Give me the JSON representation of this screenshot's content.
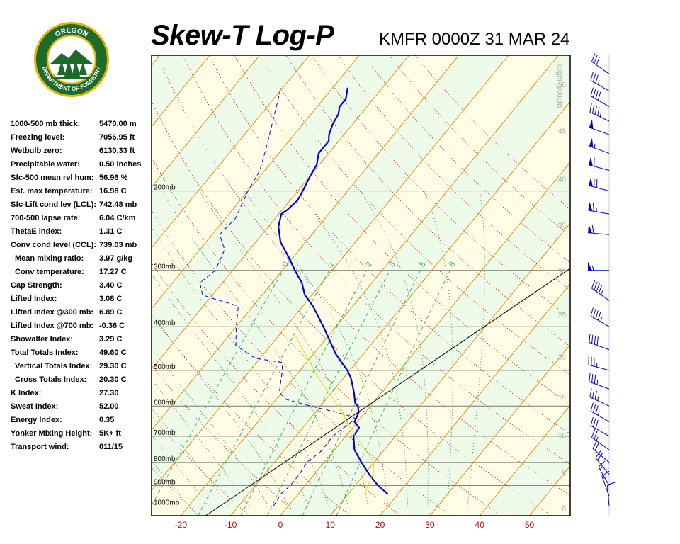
{
  "header": {
    "title": "Skew-T Log-P",
    "station": "KMFR 0000Z 31 MAR 24"
  },
  "logo": {
    "top_text": "OREGON",
    "bottom_text": "DEPARTMENT OF FORESTRY",
    "ring_color": "#1b6b2c",
    "accent_color": "#e0b400"
  },
  "indices": [
    {
      "label": "1000-500 mb thick:",
      "value": "5470.00 m"
    },
    {
      "label": "Freezing level:",
      "value": "7056.95 ft"
    },
    {
      "label": "Wetbulb zero:",
      "value": "6130.33 ft"
    },
    {
      "label": "Precipitable water:",
      "value": "0.50 inches"
    },
    {
      "label": "Sfc-500 mean rel hum:",
      "value": "56.96 %"
    },
    {
      "label": "Est. max temperature:",
      "value": "16.98 C"
    },
    {
      "label": "Sfc-Lift cond lev (LCL):",
      "value": "742.48 mb"
    },
    {
      "label": "700-500 lapse rate:",
      "value": "6.04 C/km"
    },
    {
      "label": "ThetaE index:",
      "value": "1.31 C"
    },
    {
      "label": "Conv cond level (CCL):",
      "value": "739.03 mb"
    },
    {
      "label": "Mean mixing ratio:",
      "value": "3.97 g/kg",
      "indent": true
    },
    {
      "label": "Conv temperature:",
      "value": "17.27 C",
      "indent": true
    },
    {
      "label": "Cap Strength:",
      "value": "3.40 C"
    },
    {
      "label": "Lifted Index:",
      "value": "3.08 C"
    },
    {
      "label": "Lifted Index @300 mb:",
      "value": "6.89 C"
    },
    {
      "label": "Lifted Index @700 mb:",
      "value": "-0.36 C"
    },
    {
      "label": "Showalter Index:",
      "value": "3.29 C"
    },
    {
      "label": "Total Totals Index:",
      "value": "49.60 C"
    },
    {
      "label": "Vertical Totals Index:",
      "value": "29.30 C",
      "indent": true
    },
    {
      "label": "Cross Totals Index:",
      "value": "20.30 C",
      "indent": true
    },
    {
      "label": "K Index:",
      "value": "27.30"
    },
    {
      "label": "Sweat Index:",
      "value": "52.00"
    },
    {
      "label": "Energy Index:",
      "value": "0.35"
    },
    {
      "label": "Yonker Mixing Height:",
      "value": "5K+ ft"
    },
    {
      "label": "Transport wind:",
      "value": "011/15"
    }
  ],
  "chart_data": {
    "type": "line",
    "title": "Skew-T Log-P",
    "subtitle": "KMFR 0000Z 31 MAR 24",
    "xlabel": "",
    "ylabel": "",
    "x_ticks": [
      -20,
      -10,
      0,
      10,
      20,
      30,
      40,
      50
    ],
    "pressure_labels": [
      {
        "p": 1000,
        "label": "1000mb"
      },
      {
        "p": 900,
        "label": "900mb"
      },
      {
        "p": 800,
        "label": "800mb"
      },
      {
        "p": 700,
        "label": "700mb"
      },
      {
        "p": 600,
        "label": "600mb"
      },
      {
        "p": 500,
        "label": "500mb"
      },
      {
        "p": 400,
        "label": "400mb"
      },
      {
        "p": 300,
        "label": "300mb"
      },
      {
        "p": 200,
        "label": "200mb"
      }
    ],
    "height_axis_label": "Height (1000ft)",
    "height_ticks": [
      {
        "p": 1013,
        "label": "0"
      },
      {
        "p": 843,
        "label": "5"
      },
      {
        "p": 697,
        "label": "10"
      },
      {
        "p": 572,
        "label": "15"
      },
      {
        "p": 466,
        "label": "20"
      },
      {
        "p": 376,
        "label": "25"
      },
      {
        "p": 301,
        "label": "30"
      },
      {
        "p": 238,
        "label": "35"
      },
      {
        "p": 188,
        "label": "40"
      },
      {
        "p": 147,
        "label": "45"
      },
      {
        "p": 116,
        "label": "50"
      }
    ],
    "mixing_ratio_labels": [
      "0.4",
      "1",
      "2",
      "3",
      "5",
      "8"
    ],
    "mixing_ratio_values": [
      0.4,
      1,
      2,
      3,
      5,
      8
    ],
    "colors": {
      "temperature": "#0000e0",
      "dewpoint": "#0000e0",
      "parcel": "#e0e000",
      "isotherm": "#e08a00",
      "dry_adiabat": "#cc0000",
      "moist_adiabat": "#228b22",
      "mixing_ratio": "#3cb371",
      "band_green": "#eefbe9",
      "band_yellow": "#fffde6",
      "tick_label": "#cc0000"
    },
    "series": [
      {
        "name": "Temperature",
        "points": [
          [
            940,
            18.0
          ],
          [
            900,
            14.6
          ],
          [
            850,
            11.0
          ],
          [
            800,
            7.5
          ],
          [
            750,
            4.0
          ],
          [
            700,
            1.6
          ],
          [
            670,
            1.3
          ],
          [
            650,
            -0.6
          ],
          [
            640,
            -0.8
          ],
          [
            620,
            -1.3
          ],
          [
            600,
            -2.5
          ],
          [
            590,
            -3.6
          ],
          [
            560,
            -5.5
          ],
          [
            520,
            -8.5
          ],
          [
            500,
            -10.5
          ],
          [
            460,
            -15.5
          ],
          [
            400,
            -22.5
          ],
          [
            360,
            -28.0
          ],
          [
            340,
            -31.5
          ],
          [
            320,
            -34.0
          ],
          [
            300,
            -37.5
          ],
          [
            280,
            -41.0
          ],
          [
            260,
            -45.0
          ],
          [
            240,
            -48.0
          ],
          [
            225,
            -49.5
          ],
          [
            220,
            -49.0
          ],
          [
            210,
            -48.5
          ],
          [
            200,
            -49.0
          ],
          [
            185,
            -50.0
          ],
          [
            175,
            -50.5
          ],
          [
            165,
            -52.0
          ],
          [
            155,
            -52.0
          ],
          [
            150,
            -53.0
          ],
          [
            142,
            -54.0
          ],
          [
            135,
            -54.5
          ],
          [
            130,
            -55.5
          ],
          [
            125,
            -55.5
          ],
          [
            118,
            -57.0
          ]
        ]
      },
      {
        "name": "Dewpoint",
        "points": [
          [
            1000,
            -3.0
          ],
          [
            940,
            -3.5
          ],
          [
            900,
            -3.0
          ],
          [
            850,
            -3.0
          ],
          [
            800,
            -3.5
          ],
          [
            760,
            -2.5
          ],
          [
            720,
            -2.5
          ],
          [
            700,
            -2.6
          ],
          [
            680,
            -2.0
          ],
          [
            660,
            -1.5
          ],
          [
            640,
            -0.8
          ],
          [
            630,
            -2.8
          ],
          [
            620,
            -5.5
          ],
          [
            600,
            -12.0
          ],
          [
            580,
            -18.0
          ],
          [
            560,
            -20.5
          ],
          [
            520,
            -22.5
          ],
          [
            500,
            -23.5
          ],
          [
            480,
            -25.0
          ],
          [
            470,
            -31.0
          ],
          [
            460,
            -33.0
          ],
          [
            440,
            -37.0
          ],
          [
            400,
            -40.0
          ],
          [
            360,
            -43.0
          ],
          [
            345,
            -50.0
          ],
          [
            340,
            -52.0
          ],
          [
            320,
            -54.5
          ],
          [
            300,
            -53.5
          ],
          [
            270,
            -55.0
          ],
          [
            250,
            -58.5
          ],
          [
            230,
            -58.0
          ],
          [
            200,
            -60.0
          ],
          [
            180,
            -61.0
          ],
          [
            160,
            -63.5
          ],
          [
            140,
            -66.5
          ],
          [
            120,
            -70.0
          ]
        ]
      },
      {
        "name": "Parcel",
        "points": [
          [
            940,
            13.5
          ],
          [
            900,
            12.5
          ],
          [
            850,
            11.8
          ],
          [
            800,
            10.0
          ],
          [
            742,
            5.5
          ],
          [
            700,
            2.0
          ],
          [
            600,
            -6.5
          ],
          [
            520,
            -15.0
          ],
          [
            470,
            -20.5
          ],
          [
            420,
            -26.5
          ]
        ]
      }
    ],
    "wind_barbs": [
      {
        "p": 1000,
        "dir": 355,
        "spd": 10
      },
      {
        "p": 950,
        "dir": 340,
        "spd": 15
      },
      {
        "p": 900,
        "dir": 330,
        "spd": 15
      },
      {
        "p": 850,
        "dir": 320,
        "spd": 20
      },
      {
        "p": 800,
        "dir": 310,
        "spd": 20
      },
      {
        "p": 750,
        "dir": 305,
        "spd": 25
      },
      {
        "p": 700,
        "dir": 300,
        "spd": 30
      },
      {
        "p": 650,
        "dir": 300,
        "spd": 35
      },
      {
        "p": 600,
        "dir": 295,
        "spd": 35
      },
      {
        "p": 550,
        "dir": 290,
        "spd": 35
      },
      {
        "p": 500,
        "dir": 285,
        "spd": 35
      },
      {
        "p": 450,
        "dir": 290,
        "spd": 40
      },
      {
        "p": 400,
        "dir": 300,
        "spd": 45
      },
      {
        "p": 350,
        "dir": 305,
        "spd": 45
      },
      {
        "p": 300,
        "dir": 270,
        "spd": 55
      },
      {
        "p": 250,
        "dir": 275,
        "spd": 60
      },
      {
        "p": 225,
        "dir": 280,
        "spd": 65
      },
      {
        "p": 200,
        "dir": 285,
        "spd": 70
      },
      {
        "p": 180,
        "dir": 285,
        "spd": 60
      },
      {
        "p": 165,
        "dir": 290,
        "spd": 55
      },
      {
        "p": 150,
        "dir": 290,
        "spd": 50
      },
      {
        "p": 140,
        "dir": 295,
        "spd": 45
      },
      {
        "p": 130,
        "dir": 300,
        "spd": 40
      },
      {
        "p": 120,
        "dir": 300,
        "spd": 35
      },
      {
        "p": 110,
        "dir": 305,
        "spd": 30
      }
    ]
  }
}
